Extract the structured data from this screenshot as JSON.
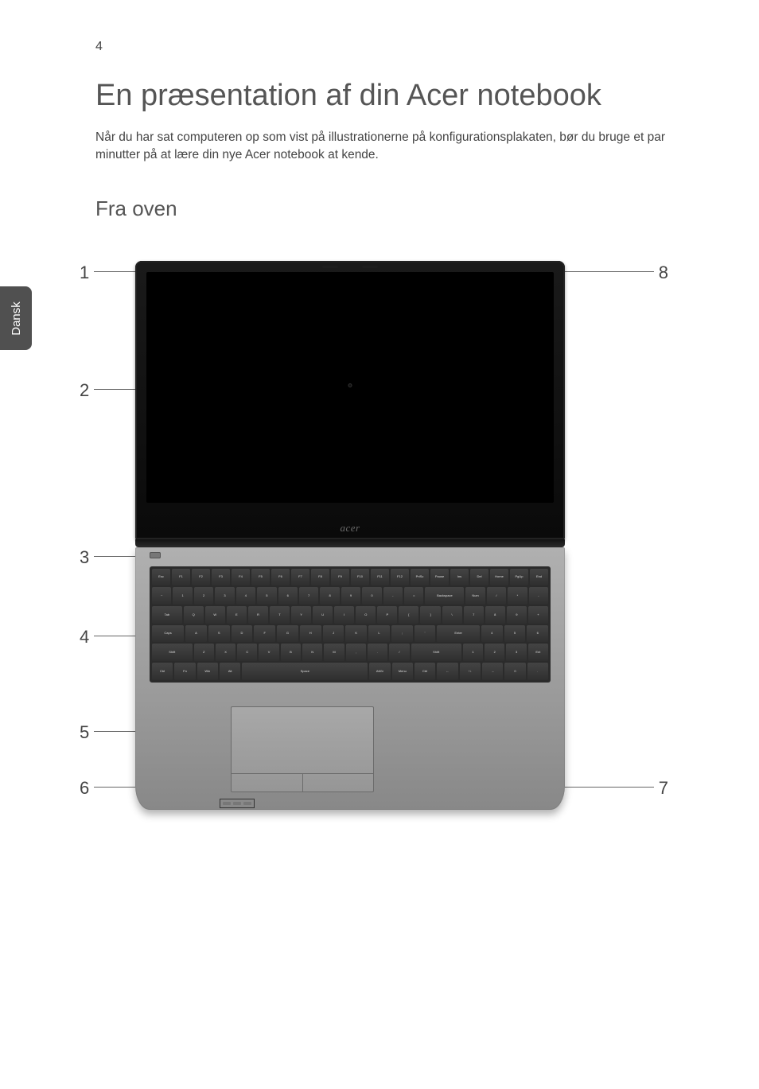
{
  "page_number": "4",
  "side_tab_label": "Dansk",
  "title": "En præsentation af din Acer notebook",
  "intro_text": "Når du har sat computeren op som vist på illustrationerne på konfigurationsplakaten, bør du bruge et par minutter på at lære din nye Acer notebook at kende.",
  "section_heading": "Fra oven",
  "laptop_brand": "acer",
  "callouts": {
    "n1": "1",
    "n2": "2",
    "n3": "3",
    "n4": "4",
    "n5": "5",
    "n6": "6",
    "n7": "7",
    "n8": "8"
  },
  "keyboard": {
    "row_f": [
      "Esc",
      "F1",
      "F2",
      "F3",
      "F4",
      "F5",
      "F6",
      "F7",
      "F8",
      "F9",
      "F10",
      "F11",
      "F12",
      "PrtSc",
      "Pause",
      "Ins",
      "Del",
      "Home",
      "PgUp",
      "End"
    ],
    "row_1": [
      "~",
      "1",
      "2",
      "3",
      "4",
      "5",
      "6",
      "7",
      "8",
      "9",
      "0",
      "-",
      "=",
      "Backspace",
      "Num",
      "/",
      "*",
      "-"
    ],
    "row_2": [
      "Tab",
      "Q",
      "W",
      "E",
      "R",
      "T",
      "Y",
      "U",
      "I",
      "O",
      "P",
      "[",
      "]",
      "\\",
      "7",
      "8",
      "9",
      "+"
    ],
    "row_3": [
      "Caps",
      "A",
      "S",
      "D",
      "F",
      "G",
      "H",
      "J",
      "K",
      "L",
      ";",
      "'",
      "Enter",
      "4",
      "5",
      "6"
    ],
    "row_4": [
      "Shift",
      "Z",
      "X",
      "C",
      "V",
      "B",
      "N",
      "M",
      ",",
      ".",
      "/",
      "Shift",
      "1",
      "2",
      "3",
      "Ent"
    ],
    "row_5": [
      "Ctrl",
      "Fn",
      "Win",
      "Alt",
      "Space",
      "AltGr",
      "Menu",
      "Ctrl",
      "←",
      "↑↓",
      "→",
      "0",
      "."
    ]
  },
  "styling": {
    "body_bg": "#ffffff",
    "text_color": "#444444",
    "heading_color": "#555555",
    "side_tab_bg": "#505050",
    "side_tab_text": "#ffffff",
    "laptop_bezel": "#0a0a0a",
    "laptop_base": "#9a9a9a",
    "keyboard_bg": "#2b2b2b",
    "key_bg": "#3a3a3a",
    "key_text": "#dddddd",
    "callout_color": "#444444",
    "line_color": "#666666",
    "title_fontsize": 38,
    "h2_fontsize": 26,
    "body_fontsize": 15.5,
    "callout_fontsize": 22
  }
}
